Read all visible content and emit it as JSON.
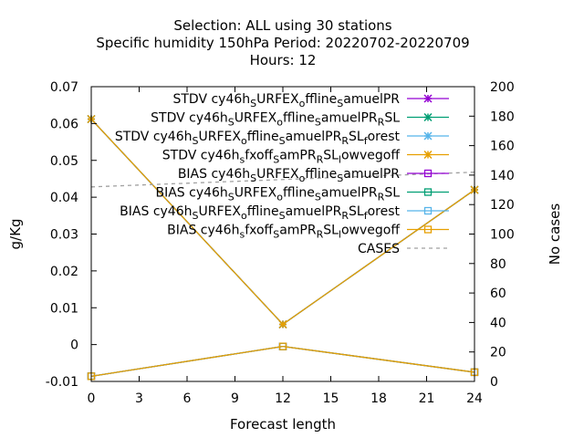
{
  "chart_data": {
    "type": "line",
    "title_lines": [
      "Selection: ALL using    30 stations",
      "Specific humidity 150hPa   Period: 20220702-20220709",
      "Hours:  12"
    ],
    "xlabel": "Forecast length",
    "ylabel": "g/Kg",
    "y2label": "No cases",
    "xlim": [
      0,
      24
    ],
    "ylim": [
      -0.01,
      0.07
    ],
    "y2lim": [
      0,
      200
    ],
    "x_ticks": [
      0,
      3,
      6,
      9,
      12,
      15,
      18,
      21,
      24
    ],
    "y_ticks": [
      -0.01,
      0,
      0.01,
      0.02,
      0.03,
      0.04,
      0.05,
      0.06,
      0.07
    ],
    "y_tick_labels": [
      "-0.01",
      "0",
      "0.01",
      "0.02",
      "0.03",
      "0.04",
      "0.05",
      "0.06",
      "0.07"
    ],
    "y2_ticks": [
      0,
      20,
      40,
      60,
      80,
      100,
      120,
      140,
      160,
      180,
      200
    ],
    "grid": false,
    "legend_position": "top-right",
    "x": [
      0,
      12,
      24
    ],
    "series": [
      {
        "name": "STDV cy46h_SURFEX_offline_samuelPR",
        "legend": {
          "base": "STDV cy46h",
          "parts": [
            [
              "S",
              "sub"
            ],
            [
              "URFEX",
              ""
            ],
            [
              "o",
              "sub"
            ],
            [
              "ffline",
              ""
            ],
            [
              "S",
              "sub"
            ],
            [
              "amuelPR",
              ""
            ]
          ]
        },
        "color": "#9400d3",
        "marker": "x",
        "axis": "y",
        "values": [
          0.0612,
          0.0055,
          0.042
        ]
      },
      {
        "name": "STDV cy46h_SURFEX_offline_samuelPR_RSL",
        "legend": {
          "base": "STDV cy46h",
          "parts": [
            [
              "S",
              "sub"
            ],
            [
              "URFEX",
              ""
            ],
            [
              "o",
              "sub"
            ],
            [
              "ffline",
              ""
            ],
            [
              "S",
              "sub"
            ],
            [
              "amuelPR",
              ""
            ],
            [
              "R",
              "sub"
            ],
            [
              "SL",
              ""
            ]
          ]
        },
        "color": "#009e73",
        "marker": "x",
        "axis": "y",
        "values": [
          0.0612,
          0.0055,
          0.042
        ]
      },
      {
        "name": "STDV cy46h_SURFEX_offline_samuelPR_RSL_forest",
        "legend": {
          "base": "STDV cy46h",
          "parts": [
            [
              "S",
              "sub"
            ],
            [
              "URFEX",
              ""
            ],
            [
              "o",
              "sub"
            ],
            [
              "ffline",
              ""
            ],
            [
              "S",
              "sub"
            ],
            [
              "amuelPR",
              ""
            ],
            [
              "R",
              "sub"
            ],
            [
              "SL",
              ""
            ],
            [
              "f",
              "sub"
            ],
            [
              "orest",
              ""
            ]
          ]
        },
        "color": "#56b4e9",
        "marker": "x",
        "axis": "y",
        "values": [
          0.0612,
          0.0055,
          0.042
        ]
      },
      {
        "name": "STDV cy46h_sfxoff_samPR_RSL_lowvegoff",
        "legend": {
          "base": "STDV cy46h",
          "parts": [
            [
              "s",
              "sub"
            ],
            [
              "fxoff",
              ""
            ],
            [
              "S",
              "sub"
            ],
            [
              "amPR",
              ""
            ],
            [
              "R",
              "sub"
            ],
            [
              "SL",
              ""
            ],
            [
              "l",
              "sub"
            ],
            [
              "owvegoff",
              ""
            ]
          ]
        },
        "color": "#e69f00",
        "marker": "x",
        "axis": "y",
        "values": [
          0.0612,
          0.0055,
          0.042
        ]
      },
      {
        "name": "BIAS cy46h_SURFEX_offline_samuelPR",
        "legend": {
          "base": "BIAS cy46h",
          "parts": [
            [
              "S",
              "sub"
            ],
            [
              "URFEX",
              ""
            ],
            [
              "o",
              "sub"
            ],
            [
              "ffline",
              ""
            ],
            [
              "S",
              "sub"
            ],
            [
              "amuelPR",
              ""
            ]
          ]
        },
        "color": "#9400d3",
        "marker": "square",
        "axis": "y",
        "values": [
          -0.0086,
          -0.0005,
          -0.0075
        ]
      },
      {
        "name": "BIAS cy46h_SURFEX_offline_samuelPR_RSL",
        "legend": {
          "base": "BIAS cy46h",
          "parts": [
            [
              "S",
              "sub"
            ],
            [
              "URFEX",
              ""
            ],
            [
              "o",
              "sub"
            ],
            [
              "ffline",
              ""
            ],
            [
              "S",
              "sub"
            ],
            [
              "amuelPR",
              ""
            ],
            [
              "R",
              "sub"
            ],
            [
              "SL",
              ""
            ]
          ]
        },
        "color": "#009e73",
        "marker": "square",
        "axis": "y",
        "values": [
          -0.0086,
          -0.0005,
          -0.0075
        ]
      },
      {
        "name": "BIAS cy46h_SURFEX_offline_samuelPR_RSL_forest",
        "legend": {
          "base": "BIAS cy46h",
          "parts": [
            [
              "S",
              "sub"
            ],
            [
              "URFEX",
              ""
            ],
            [
              "o",
              "sub"
            ],
            [
              "ffline",
              ""
            ],
            [
              "S",
              "sub"
            ],
            [
              "amuelPR",
              ""
            ],
            [
              "R",
              "sub"
            ],
            [
              "SL",
              ""
            ],
            [
              "f",
              "sub"
            ],
            [
              "orest",
              ""
            ]
          ]
        },
        "color": "#56b4e9",
        "marker": "square",
        "axis": "y",
        "values": [
          -0.0086,
          -0.0005,
          -0.0075
        ]
      },
      {
        "name": "BIAS cy46h_sfxoff_samPR_RSL_lowvegoff",
        "legend": {
          "base": "BIAS cy46h",
          "parts": [
            [
              "s",
              "sub"
            ],
            [
              "fxoff",
              ""
            ],
            [
              "S",
              "sub"
            ],
            [
              "amPR",
              ""
            ],
            [
              "R",
              "sub"
            ],
            [
              "SL",
              ""
            ],
            [
              "l",
              "sub"
            ],
            [
              "owvegoff",
              ""
            ]
          ]
        },
        "color": "#e69f00",
        "marker": "square",
        "axis": "y",
        "values": [
          -0.0086,
          -0.0005,
          -0.0075
        ]
      },
      {
        "name": "CASES",
        "legend": {
          "base": "CASES",
          "parts": []
        },
        "color": "#a0a0a0",
        "marker": "none",
        "dashed": true,
        "axis": "y2",
        "values": [
          132,
          137,
          142
        ]
      }
    ]
  }
}
